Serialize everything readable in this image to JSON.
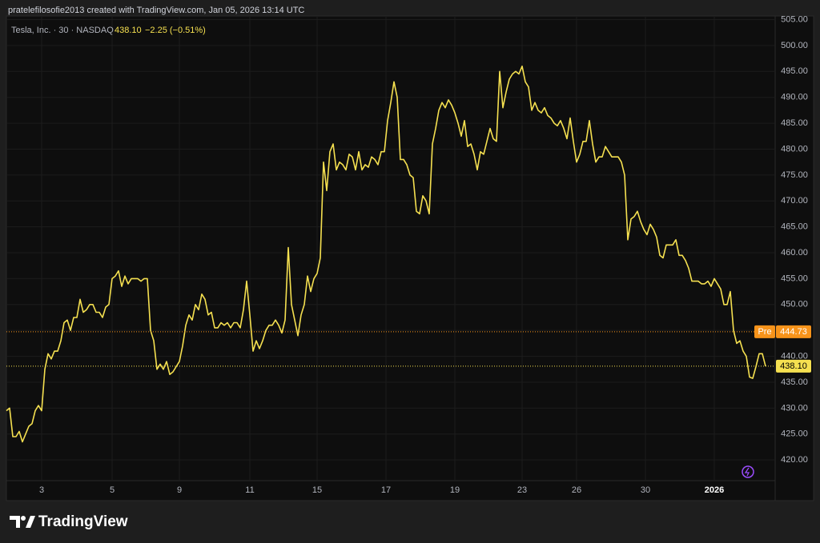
{
  "header": {
    "text": "pratelefilosofie2013 created with TradingView.com, Jan 05, 2026 13:14 UTC"
  },
  "chart_data": {
    "type": "line",
    "symbol": "Tesla, Inc. · 30 · NASDAQ",
    "last_price_label": "438.10",
    "change_label": "−2.25 (−0.51%)",
    "color": "#f5e050",
    "values": [
      429.5,
      430,
      424.5,
      424.5,
      425.5,
      423.5,
      425,
      426.5,
      427,
      429.5,
      430.5,
      429.5,
      437.5,
      440.5,
      439.5,
      441,
      441,
      443,
      446.5,
      447,
      445,
      447.5,
      447.5,
      451,
      448.5,
      449,
      450,
      450,
      448.5,
      448.5,
      447.5,
      449.5,
      450,
      455,
      455.5,
      456.5,
      453.5,
      455.5,
      454,
      455,
      455,
      455,
      454.5,
      455,
      455,
      445,
      443,
      437.5,
      438.5,
      437.5,
      439,
      436.5,
      437,
      438,
      439,
      442,
      446,
      448,
      447,
      450,
      449,
      452,
      451,
      448,
      448.5,
      445.5,
      445.5,
      446.5,
      446,
      446.5,
      445.5,
      446.5,
      446.5,
      445.5,
      449,
      454.5,
      448,
      441,
      443,
      441.5,
      443,
      445,
      446,
      446,
      447,
      446,
      444.5,
      447,
      461,
      450,
      447,
      444,
      448,
      450,
      455.5,
      452.5,
      455,
      456,
      459,
      477.5,
      472,
      479.5,
      481,
      476,
      477.5,
      477,
      476,
      479,
      478.5,
      476,
      479.5,
      476,
      477,
      476.5,
      478.5,
      478,
      477,
      479.5,
      479.5,
      485.5,
      489,
      493,
      490,
      478,
      478,
      477,
      475,
      474.5,
      468,
      467.5,
      471,
      470,
      467.5,
      481,
      484,
      487.5,
      489,
      488,
      489.5,
      488.5,
      487,
      485,
      482.5,
      485.5,
      480.5,
      481,
      479,
      476,
      479.5,
      479,
      481.5,
      484,
      482,
      481.5,
      495,
      488,
      491,
      493.5,
      494.5,
      495,
      494.5,
      496,
      493,
      492,
      487.5,
      489,
      487.5,
      487,
      488,
      486.5,
      486,
      485,
      484.5,
      485.5,
      484,
      482,
      486,
      481.5,
      477.5,
      479,
      481.5,
      481.5,
      485.5,
      481,
      477.5,
      478.5,
      478.5,
      480.5,
      479.5,
      478.5,
      478.5,
      478.5,
      477.5,
      475,
      462.5,
      466.5,
      467,
      468,
      466,
      464.5,
      463.5,
      465.5,
      464.5,
      463,
      459.5,
      459,
      461.5,
      461.5,
      461.5,
      462.5,
      459.5,
      459.5,
      458.5,
      457,
      454.5,
      454.5,
      454.5,
      454,
      454,
      454.5,
      453.5,
      455,
      454,
      453,
      450,
      450,
      452.5,
      445,
      442.5,
      443,
      441,
      440,
      436,
      435.75,
      438,
      440.5,
      440.5,
      438.1
    ],
    "xlim": [
      0,
      240
    ],
    "xticks": [
      {
        "value": 11,
        "label": "3"
      },
      {
        "value": 33,
        "label": "5"
      },
      {
        "value": 54,
        "label": "9"
      },
      {
        "value": 76,
        "label": "11"
      },
      {
        "value": 97,
        "label": "15"
      },
      {
        "value": 118.5,
        "label": "17"
      },
      {
        "value": 140,
        "label": "19"
      },
      {
        "value": 161,
        "label": "23"
      },
      {
        "value": 178,
        "label": "26"
      },
      {
        "value": 199.5,
        "label": "30"
      },
      {
        "value": 221,
        "label": "2026"
      }
    ],
    "ylim": [
      412.3,
      505.7
    ],
    "yticks": [
      {
        "value": 420,
        "label": "420.00"
      },
      {
        "value": 425,
        "label": "425.00"
      },
      {
        "value": 430,
        "label": "430.00"
      },
      {
        "value": 435,
        "label": "435.00"
      },
      {
        "value": 440,
        "label": "440.00"
      },
      {
        "value": 445,
        "label": "445.00"
      },
      {
        "value": 450,
        "label": "450.00"
      },
      {
        "value": 455,
        "label": "455.00"
      },
      {
        "value": 460,
        "label": "460.00"
      },
      {
        "value": 465,
        "label": "465.00"
      },
      {
        "value": 470,
        "label": "470.00"
      },
      {
        "value": 475,
        "label": "475.00"
      },
      {
        "value": 480,
        "label": "480.00"
      },
      {
        "value": 485,
        "label": "485.00"
      },
      {
        "value": 490,
        "label": "490.00"
      },
      {
        "value": 495,
        "label": "495.00"
      },
      {
        "value": 500,
        "label": "500.00"
      },
      {
        "value": 505,
        "label": "505.00"
      }
    ],
    "grid": true,
    "price_lines": [
      {
        "name": "Pre",
        "value": 444.73,
        "label": "444.73",
        "color": "#f7931a"
      },
      {
        "value": 438.1,
        "label": "438.10",
        "color": "#f5e050"
      }
    ]
  },
  "footer": {
    "brand": "TradingView"
  }
}
